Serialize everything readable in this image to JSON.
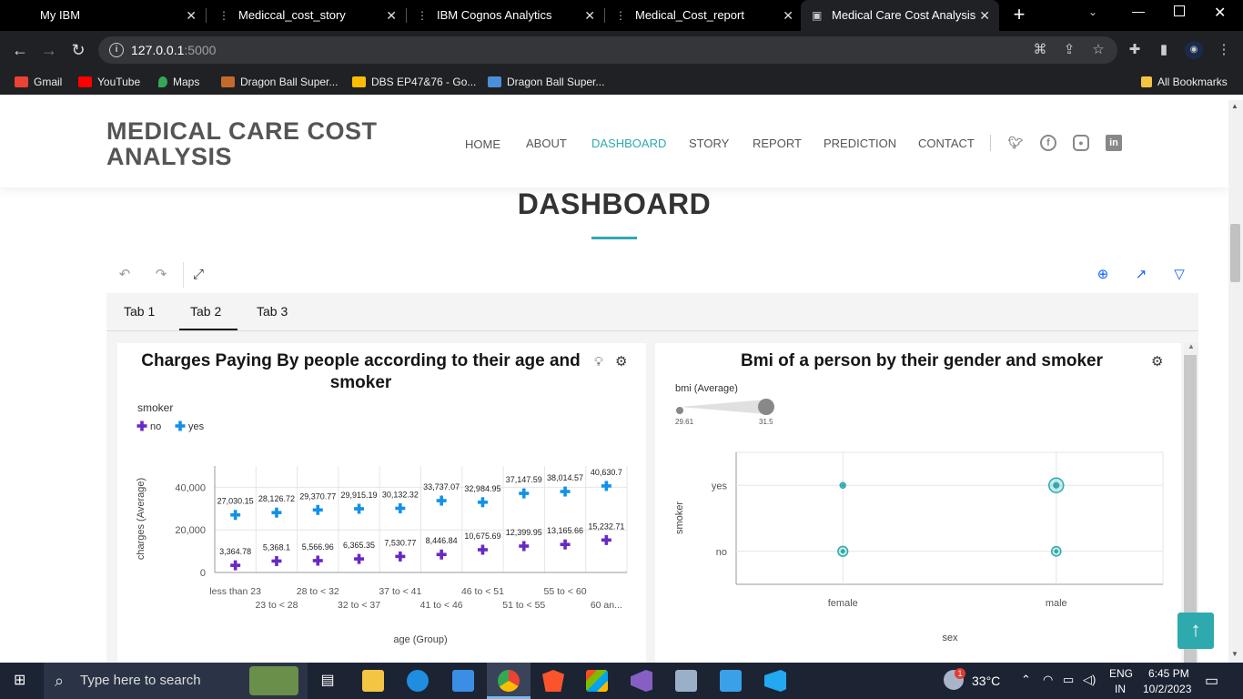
{
  "browser": {
    "tabs": [
      {
        "label": "My IBM",
        "icon": "ibm-icon"
      },
      {
        "label": "Mediccal_cost_story",
        "icon": "cognos-icon"
      },
      {
        "label": "IBM Cognos Analytics",
        "icon": "cognos-icon"
      },
      {
        "label": "Medical_Cost_report",
        "icon": "cognos-icon"
      },
      {
        "label": "Medical Care Cost Analysis",
        "icon": "page-icon"
      }
    ],
    "url_host": "127.0.0.1",
    "url_port": ":5000",
    "bookmarks": [
      {
        "label": "Gmail",
        "color": "#ea4335"
      },
      {
        "label": "YouTube",
        "color": "#ff0000"
      },
      {
        "label": "Maps",
        "color": "#34a853"
      },
      {
        "label": "Dragon Ball Super...",
        "color": "#c46a2d"
      },
      {
        "label": "DBS EP47&76 - Go...",
        "color": "#fbbc04"
      },
      {
        "label": "Dragon Ball Super...",
        "color": "#4a90d9"
      }
    ],
    "all_bookmarks": "All Bookmarks"
  },
  "site": {
    "brand": "MEDICAL CARE COST ANALYSIS",
    "nav": [
      "HOME",
      "ABOUT",
      "DASHBOARD",
      "STORY",
      "REPORT",
      "PREDICTION",
      "CONTACT"
    ],
    "active_nav": "DASHBOARD",
    "accent": "#2eaaaf",
    "section_title": "DASHBOARD"
  },
  "cognos": {
    "tabs": [
      "Tab 1",
      "Tab 2",
      "Tab 3"
    ],
    "active_tab": "Tab 2"
  },
  "chart_data": [
    {
      "type": "scatter",
      "title": "Charges Paying By people according to their age and smoker",
      "legend_title": "smoker",
      "legend": [
        "no",
        "yes"
      ],
      "xlabel": "age (Group)",
      "ylabel": "charges (Average)",
      "ylim": [
        0,
        50000
      ],
      "yticks": [
        "0",
        "20,000",
        "40,000"
      ],
      "categories": [
        "less than 23",
        "23 to < 28",
        "28 to < 32",
        "32 to < 37",
        "37 to < 41",
        "41 to < 46",
        "46 to < 51",
        "51 to < 55",
        "55 to < 60",
        "60 an..."
      ],
      "series": [
        {
          "name": "no",
          "color": "#6929c4",
          "values": [
            3364.78,
            5368.1,
            5566.96,
            6365.35,
            7530.77,
            8446.84,
            10675.69,
            12399.95,
            13165.66,
            15232.71
          ],
          "labels": [
            "3,364.78",
            "5,368.1",
            "5,566.96",
            "6,365.35",
            "7,530.77",
            "8,446.84",
            "10,675.69",
            "12,399.95",
            "13,165.66",
            "15,232.71"
          ]
        },
        {
          "name": "yes",
          "color": "#1192e8",
          "values": [
            27030.15,
            28126.72,
            29370.77,
            29915.19,
            30132.32,
            33737.07,
            32984.95,
            37147.59,
            38014.57,
            40630.7
          ],
          "labels": [
            "27,030.15",
            "28,126.72",
            "29,370.77",
            "29,915.19",
            "30,132.32",
            "33,737.07",
            "32,984.95",
            "37,147.59",
            "38,014.57",
            "40,630.7"
          ]
        }
      ]
    },
    {
      "type": "scatter",
      "title": "Bmi of a person by their gender and smoker",
      "size_legend_title": "bmi (Average)",
      "size_range": [
        "29.61",
        "31.5"
      ],
      "xlabel": "sex",
      "ylabel": "smoker",
      "x": [
        "female",
        "male"
      ],
      "y": [
        "yes",
        "no"
      ],
      "color": "#2eaaaf",
      "points": [
        {
          "x": "female",
          "y": "yes",
          "bmi": 29.61
        },
        {
          "x": "male",
          "y": "yes",
          "bmi": 31.5
        },
        {
          "x": "female",
          "y": "no",
          "bmi": 30.5
        },
        {
          "x": "male",
          "y": "no",
          "bmi": 30.4
        }
      ]
    }
  ],
  "taskbar": {
    "search_placeholder": "Type here to search",
    "temperature": "33°C",
    "lang1": "ENG",
    "lang2": "IN",
    "time": "6:45 PM",
    "date": "10/2/2023",
    "weather_badge": "1"
  }
}
